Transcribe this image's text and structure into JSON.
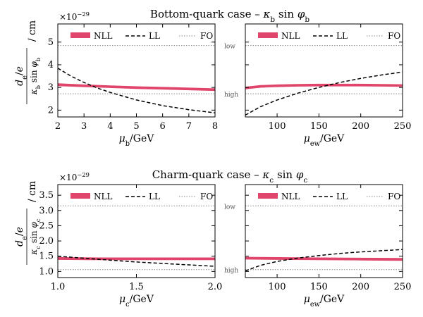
{
  "chart_data": [
    {
      "type": "line",
      "panel": "bottom-left",
      "title": "Bottom-quark case – κb sin φb",
      "xlabel": "μb/GeV",
      "ylabel": "de/e / (κb sin φb) / cm",
      "yscale_label": "×10−29",
      "xlim": [
        2,
        8
      ],
      "ylim": [
        1.7,
        5.8
      ],
      "xticks": [
        "2",
        "3",
        "4",
        "5",
        "6",
        "7",
        "8"
      ],
      "yticks": [
        "2",
        "3",
        "4",
        "5"
      ],
      "legend": [
        "NLL",
        "LL",
        "FO"
      ],
      "series": [
        {
          "name": "NLL",
          "style": "band",
          "color": "#e0456b",
          "x": [
            2,
            3,
            4,
            5,
            6,
            7,
            8
          ],
          "upper": [
            3.17,
            3.12,
            3.08,
            3.04,
            3.01,
            2.98,
            2.95
          ],
          "lower": [
            3.07,
            3.03,
            2.99,
            2.95,
            2.92,
            2.89,
            2.86
          ]
        },
        {
          "name": "LL",
          "style": "dashed",
          "color": "#000000",
          "x": [
            2,
            2.5,
            3,
            3.5,
            4,
            5,
            6,
            7,
            8
          ],
          "values": [
            3.85,
            3.5,
            3.22,
            2.98,
            2.78,
            2.45,
            2.2,
            2.02,
            1.88
          ]
        },
        {
          "name": "FO",
          "style": "dotted",
          "color": "#888888",
          "hlines": [
            4.85,
            2.72
          ]
        }
      ]
    },
    {
      "type": "line",
      "panel": "bottom-right",
      "xlabel": "μew/GeV",
      "xlim": [
        62,
        250
      ],
      "ylim": [
        1.7,
        5.8
      ],
      "xticks": [
        "100",
        "150",
        "200",
        "250"
      ],
      "fo_labels": [
        "low",
        "high"
      ],
      "legend": [
        "NLL",
        "LL",
        "FO"
      ],
      "series": [
        {
          "name": "NLL",
          "style": "band",
          "color": "#e0456b",
          "x": [
            62,
            80,
            100,
            125,
            150,
            175,
            200,
            225,
            250
          ],
          "upper": [
            3.02,
            3.09,
            3.12,
            3.14,
            3.15,
            3.15,
            3.15,
            3.14,
            3.13
          ],
          "lower": [
            2.93,
            3.0,
            3.03,
            3.05,
            3.06,
            3.06,
            3.06,
            3.05,
            3.04
          ]
        },
        {
          "name": "LL",
          "style": "dashed",
          "color": "#000000",
          "x": [
            62,
            80,
            100,
            125,
            150,
            175,
            200,
            225,
            250
          ],
          "values": [
            1.78,
            2.15,
            2.45,
            2.75,
            3.0,
            3.22,
            3.4,
            3.55,
            3.68
          ]
        },
        {
          "name": "FO",
          "style": "dotted",
          "color": "#888888",
          "hlines": [
            4.85,
            2.72
          ]
        }
      ]
    },
    {
      "type": "line",
      "panel": "charm-left",
      "title": "Charm-quark case – κc sin φc",
      "xlabel": "μc/GeV",
      "ylabel": "de/e / (κc sin φc) / cm",
      "yscale_label": "×10−29",
      "xlim": [
        1.0,
        2.0
      ],
      "ylim": [
        0.8,
        3.85
      ],
      "xticks": [
        "1.0",
        "1.5",
        "2.0"
      ],
      "yticks": [
        "1.0",
        "1.5",
        "2.0",
        "2.5",
        "3.0",
        "3.5"
      ],
      "legend": [
        "NLL",
        "LL",
        "FO"
      ],
      "series": [
        {
          "name": "NLL",
          "style": "band",
          "color": "#e0456b",
          "x": [
            1.0,
            1.25,
            1.5,
            1.75,
            2.0
          ],
          "upper": [
            1.46,
            1.45,
            1.45,
            1.45,
            1.45
          ],
          "lower": [
            1.39,
            1.38,
            1.38,
            1.38,
            1.38
          ]
        },
        {
          "name": "LL",
          "style": "dashed",
          "color": "#000000",
          "x": [
            1.0,
            1.25,
            1.5,
            1.75,
            2.0
          ],
          "values": [
            1.5,
            1.4,
            1.31,
            1.24,
            1.17
          ]
        },
        {
          "name": "FO",
          "style": "dotted",
          "color": "#888888",
          "hlines": [
            3.15,
            1.06
          ]
        }
      ]
    },
    {
      "type": "line",
      "panel": "charm-right",
      "xlabel": "μew/GeV",
      "xlim": [
        62,
        250
      ],
      "ylim": [
        0.8,
        3.85
      ],
      "xticks": [
        "100",
        "150",
        "200",
        "250"
      ],
      "fo_labels": [
        "low",
        "high"
      ],
      "legend": [
        "NLL",
        "LL",
        "FO"
      ],
      "series": [
        {
          "name": "NLL",
          "style": "band",
          "color": "#e0456b",
          "x": [
            62,
            100,
            150,
            200,
            250
          ],
          "upper": [
            1.47,
            1.46,
            1.45,
            1.44,
            1.43
          ],
          "lower": [
            1.4,
            1.39,
            1.38,
            1.37,
            1.36
          ]
        },
        {
          "name": "LL",
          "style": "dashed",
          "color": "#000000",
          "x": [
            62,
            80,
            100,
            125,
            150,
            175,
            200,
            225,
            250
          ],
          "values": [
            1.02,
            1.2,
            1.33,
            1.44,
            1.52,
            1.59,
            1.64,
            1.68,
            1.72
          ]
        },
        {
          "name": "FO",
          "style": "dotted",
          "color": "#888888",
          "hlines": [
            3.15,
            1.06
          ]
        }
      ]
    }
  ]
}
